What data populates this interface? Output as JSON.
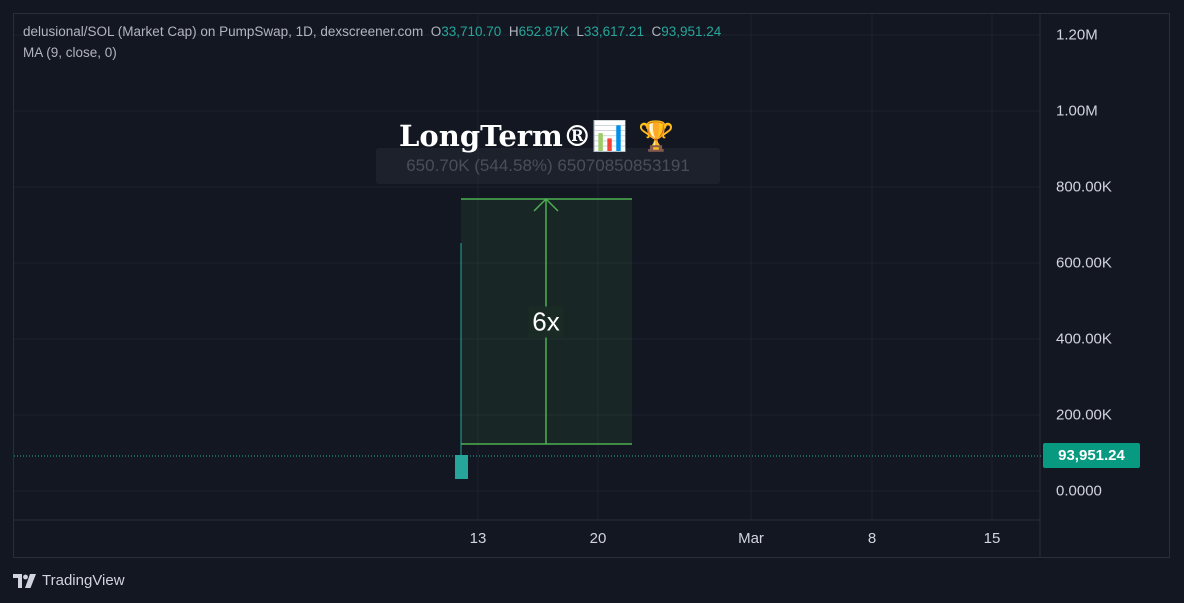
{
  "legend": {
    "title": "delusional/SOL (Market Cap) on PumpSwap, 1D, dexscreener.com",
    "o_key": "O",
    "o_val": "33,710.70",
    "h_key": "H",
    "h_val": "652.87K",
    "l_key": "L",
    "l_val": "33,617.21",
    "c_key": "C",
    "c_val": "93,951.24",
    "indicator": "MA (9, close, 0)"
  },
  "y_axis": {
    "labels": [
      "1.20M",
      "1.00M",
      "800.00K",
      "600.00K",
      "400.00K",
      "200.00K",
      "0.0000"
    ]
  },
  "x_axis": {
    "labels": [
      "13",
      "20",
      "Mar",
      "8",
      "15"
    ]
  },
  "price_badge": "93,951.24",
  "annotation": {
    "title": "LongTerm®📊 🏆",
    "ghost_label": "650.70K (544.58%) 65070850853191",
    "multiplier": "6x"
  },
  "colors": {
    "background": "#131722",
    "grid": "#1e222d",
    "up": "#26a69a",
    "badge": "#089981",
    "measure_line": "#4caf50"
  },
  "branding": {
    "name": "TradingView"
  }
}
